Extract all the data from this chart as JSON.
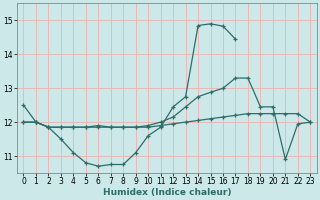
{
  "xlabel": "Humidex (Indice chaleur)",
  "xlim": [
    -0.5,
    23.5
  ],
  "ylim": [
    10.5,
    15.5
  ],
  "yticks": [
    11,
    12,
    13,
    14,
    15
  ],
  "xticks": [
    0,
    1,
    2,
    3,
    4,
    5,
    6,
    7,
    8,
    9,
    10,
    11,
    12,
    13,
    14,
    15,
    16,
    17,
    18,
    19,
    20,
    21,
    22,
    23
  ],
  "bg_color": "#cce8e8",
  "grid_color": "#e8b8b8",
  "line_color": "#2d6e6a",
  "lines": [
    {
      "x": [
        0,
        1,
        2,
        3,
        4,
        5,
        6,
        7,
        8,
        9,
        10,
        11,
        12,
        13,
        14,
        15,
        16,
        17
      ],
      "y": [
        12.5,
        12.0,
        11.85,
        11.5,
        11.1,
        10.8,
        10.7,
        10.75,
        10.75,
        11.1,
        11.6,
        11.85,
        12.45,
        12.75,
        14.85,
        14.9,
        14.83,
        14.45
      ]
    },
    {
      "x": [
        0,
        1,
        2,
        3,
        4,
        5,
        6,
        7,
        8,
        9,
        10,
        11,
        12,
        13,
        14,
        15,
        16,
        17,
        18,
        19,
        20,
        21,
        22,
        23
      ],
      "y": [
        12.0,
        12.0,
        11.85,
        11.85,
        11.85,
        11.85,
        11.9,
        11.85,
        11.85,
        11.85,
        11.9,
        12.0,
        12.15,
        12.45,
        12.75,
        12.88,
        13.0,
        13.3,
        13.3,
        12.45,
        12.45,
        10.9,
        11.95,
        12.0
      ]
    },
    {
      "x": [
        0,
        1,
        2,
        3,
        4,
        5,
        6,
        7,
        8,
        9,
        10,
        11,
        12,
        13,
        14,
        15,
        16,
        17,
        18,
        19,
        20,
        21,
        22,
        23
      ],
      "y": [
        12.0,
        12.0,
        11.85,
        11.85,
        11.85,
        11.85,
        11.85,
        11.85,
        11.85,
        11.85,
        11.85,
        11.9,
        11.95,
        12.0,
        12.05,
        12.1,
        12.15,
        12.2,
        12.25,
        12.25,
        12.25,
        12.25,
        12.25,
        12.0
      ]
    }
  ],
  "tick_fontsize": 5.5,
  "xlabel_fontsize": 6.5,
  "xlabel_color": "#2d6e6a",
  "linewidth": 0.9,
  "markersize": 3.5,
  "markeredgewidth": 0.9
}
